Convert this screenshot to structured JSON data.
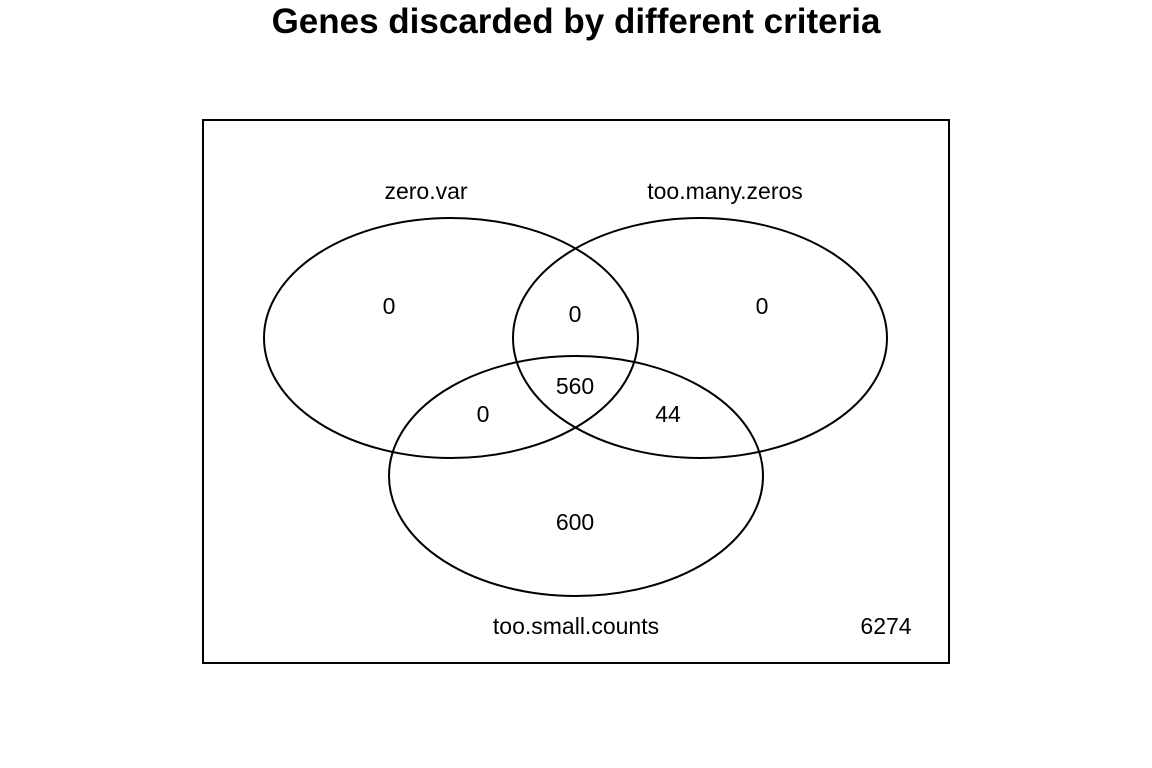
{
  "title": "Genes discarded by different criteria",
  "sets": {
    "a": "zero.var",
    "b": "too.many.zeros",
    "c": "too.small.counts"
  },
  "counts": {
    "a_only": "0",
    "b_only": "0",
    "c_only": "600",
    "ab": "0",
    "ac": "0",
    "bc": "44",
    "abc": "560",
    "outside": "6274"
  },
  "colors": {
    "stroke": "#000000",
    "text": "#000000",
    "background": "#ffffff"
  }
}
